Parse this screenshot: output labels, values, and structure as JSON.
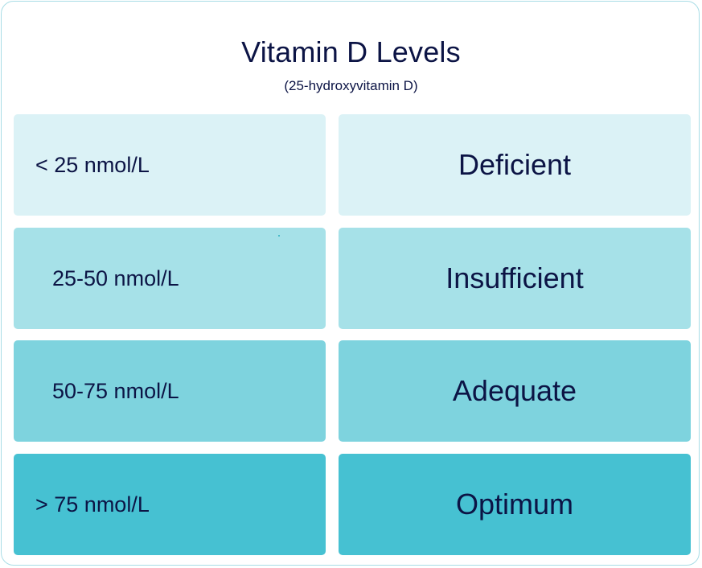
{
  "header": {
    "title": "Vitamin D Levels",
    "subtitle": "(25-hydroxyvitamin D)"
  },
  "rows": [
    {
      "range": "< 25 nmol/L",
      "status": "Deficient",
      "color": "#dbf2f6"
    },
    {
      "range": "25-50 nmol/L",
      "status": "Insufficient",
      "color": "#a6e1e8"
    },
    {
      "range": "50-75 nmol/L",
      "status": "Adequate",
      "color": "#7ed3de"
    },
    {
      "range": "> 75 nmol/L",
      "status": "Optimum",
      "color": "#46c1d2"
    }
  ],
  "colors": {
    "text": "#0c1445",
    "border": "#a8dde6"
  }
}
